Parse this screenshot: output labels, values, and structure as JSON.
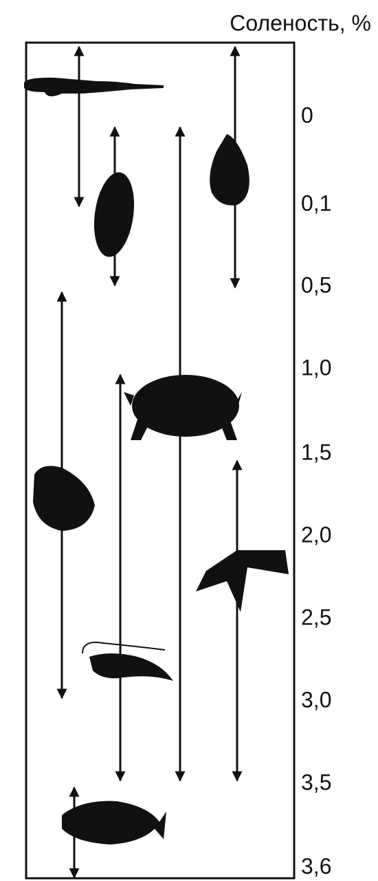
{
  "header": {
    "title": "Соленость, %"
  },
  "scale": {
    "labels": [
      "0",
      "0,1",
      "0,5",
      "1,0",
      "1,5",
      "2,0",
      "2,5",
      "3,0",
      "3,5",
      "3,6"
    ]
  }
}
